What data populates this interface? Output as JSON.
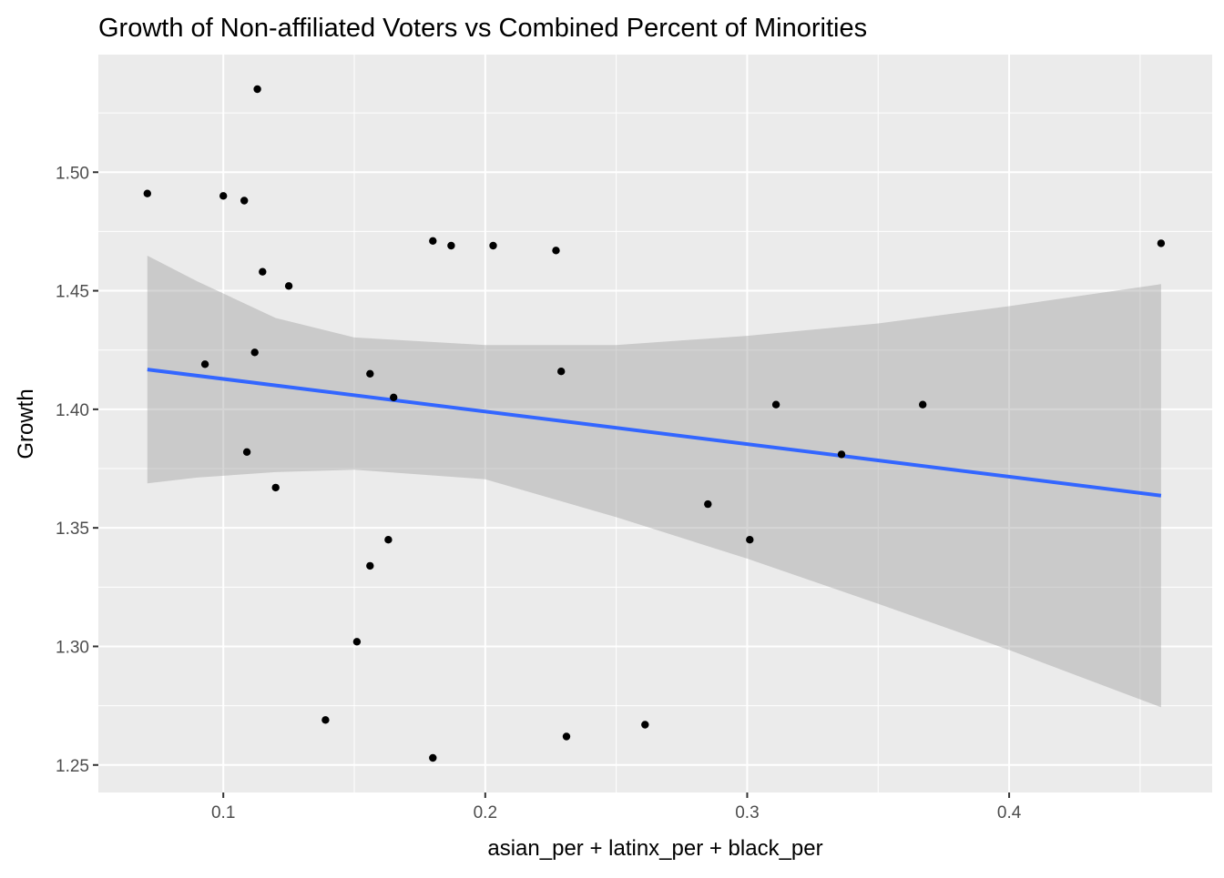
{
  "chart_data": {
    "type": "scatter",
    "title": "Growth of Non-affiliated Voters vs Combined Percent of Minorities",
    "xlabel": "asian_per + latinx_per + black_per",
    "ylabel": "Growth",
    "xlim": [
      0.0523,
      0.4775
    ],
    "ylim": [
      1.2384,
      1.5496
    ],
    "x_ticks": [
      0.1,
      0.2,
      0.3,
      0.4
    ],
    "x_tick_labels": [
      "0.1",
      "0.2",
      "0.3",
      "0.4"
    ],
    "y_ticks": [
      1.25,
      1.3,
      1.35,
      1.4,
      1.45,
      1.5
    ],
    "y_tick_labels": [
      "1.25",
      "1.30",
      "1.35",
      "1.40",
      "1.45",
      "1.50"
    ],
    "grid": true,
    "panel_background": "#ebebeb",
    "grid_color": "#ffffff",
    "point_color": "#000000",
    "series": [
      {
        "type": "points",
        "x": [
          0.071,
          0.1,
          0.108,
          0.113,
          0.115,
          0.125,
          0.093,
          0.112,
          0.109,
          0.12,
          0.156,
          0.165,
          0.163,
          0.156,
          0.151,
          0.139,
          0.18,
          0.187,
          0.203,
          0.227,
          0.229,
          0.18,
          0.231,
          0.261,
          0.285,
          0.301,
          0.311,
          0.336,
          0.367,
          0.458
        ],
        "y": [
          1.491,
          1.49,
          1.488,
          1.535,
          1.458,
          1.452,
          1.419,
          1.424,
          1.382,
          1.367,
          1.415,
          1.405,
          1.345,
          1.334,
          1.302,
          1.269,
          1.471,
          1.469,
          1.469,
          1.467,
          1.416,
          1.253,
          1.262,
          1.267,
          1.36,
          1.345,
          1.402,
          1.381,
          1.402,
          1.47
        ]
      },
      {
        "type": "fit_line",
        "color": "#3366ff",
        "x": [
          0.071,
          0.458
        ],
        "y": [
          1.4168,
          1.3636
        ]
      },
      {
        "type": "confidence_band",
        "color": "#999999",
        "x": [
          0.071,
          0.09,
          0.12,
          0.15,
          0.2,
          0.25,
          0.3,
          0.35,
          0.4,
          0.458
        ],
        "upper": [
          1.4648,
          1.454,
          1.4385,
          1.4303,
          1.4271,
          1.4271,
          1.431,
          1.4362,
          1.4435,
          1.4528
        ],
        "lower": [
          1.3688,
          1.3712,
          1.3735,
          1.3745,
          1.3705,
          1.3545,
          1.337,
          1.318,
          1.2985,
          1.2743
        ]
      }
    ]
  }
}
